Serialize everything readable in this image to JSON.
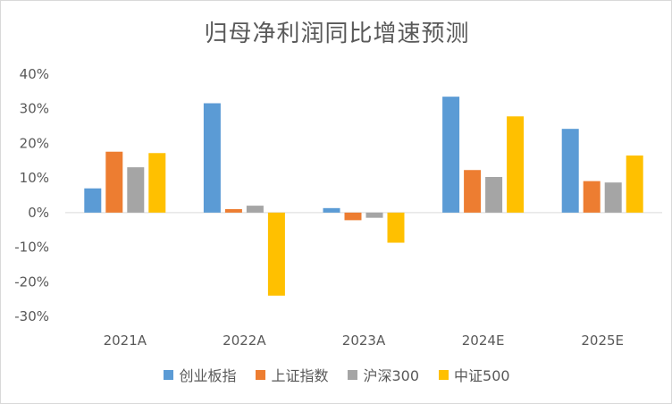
{
  "chart_data": {
    "type": "bar",
    "title": "归母净利润同比增速预测",
    "categories": [
      "2021A",
      "2022A",
      "2023A",
      "2024E",
      "2025E"
    ],
    "series": [
      {
        "name": "创业板指",
        "color": "#5B9BD5",
        "values": [
          7.0,
          31.6,
          1.3,
          33.5,
          24.2
        ]
      },
      {
        "name": "上证指数",
        "color": "#ED7D31",
        "values": [
          17.6,
          1.0,
          -2.2,
          12.3,
          9.1
        ]
      },
      {
        "name": "沪深300",
        "color": "#A5A5A5",
        "values": [
          13.1,
          2.0,
          -1.5,
          10.3,
          8.7
        ]
      },
      {
        "name": "中证500",
        "color": "#FFC000",
        "values": [
          17.2,
          -24.0,
          -8.7,
          27.8,
          16.5
        ]
      }
    ],
    "yticks": [
      "40%",
      "30%",
      "20%",
      "10%",
      "0%",
      "-10%",
      "-20%",
      "-30%"
    ],
    "ylim": [
      -30,
      40
    ],
    "xlabel": "",
    "ylabel": "",
    "grid": false,
    "legend_position": "bottom"
  }
}
